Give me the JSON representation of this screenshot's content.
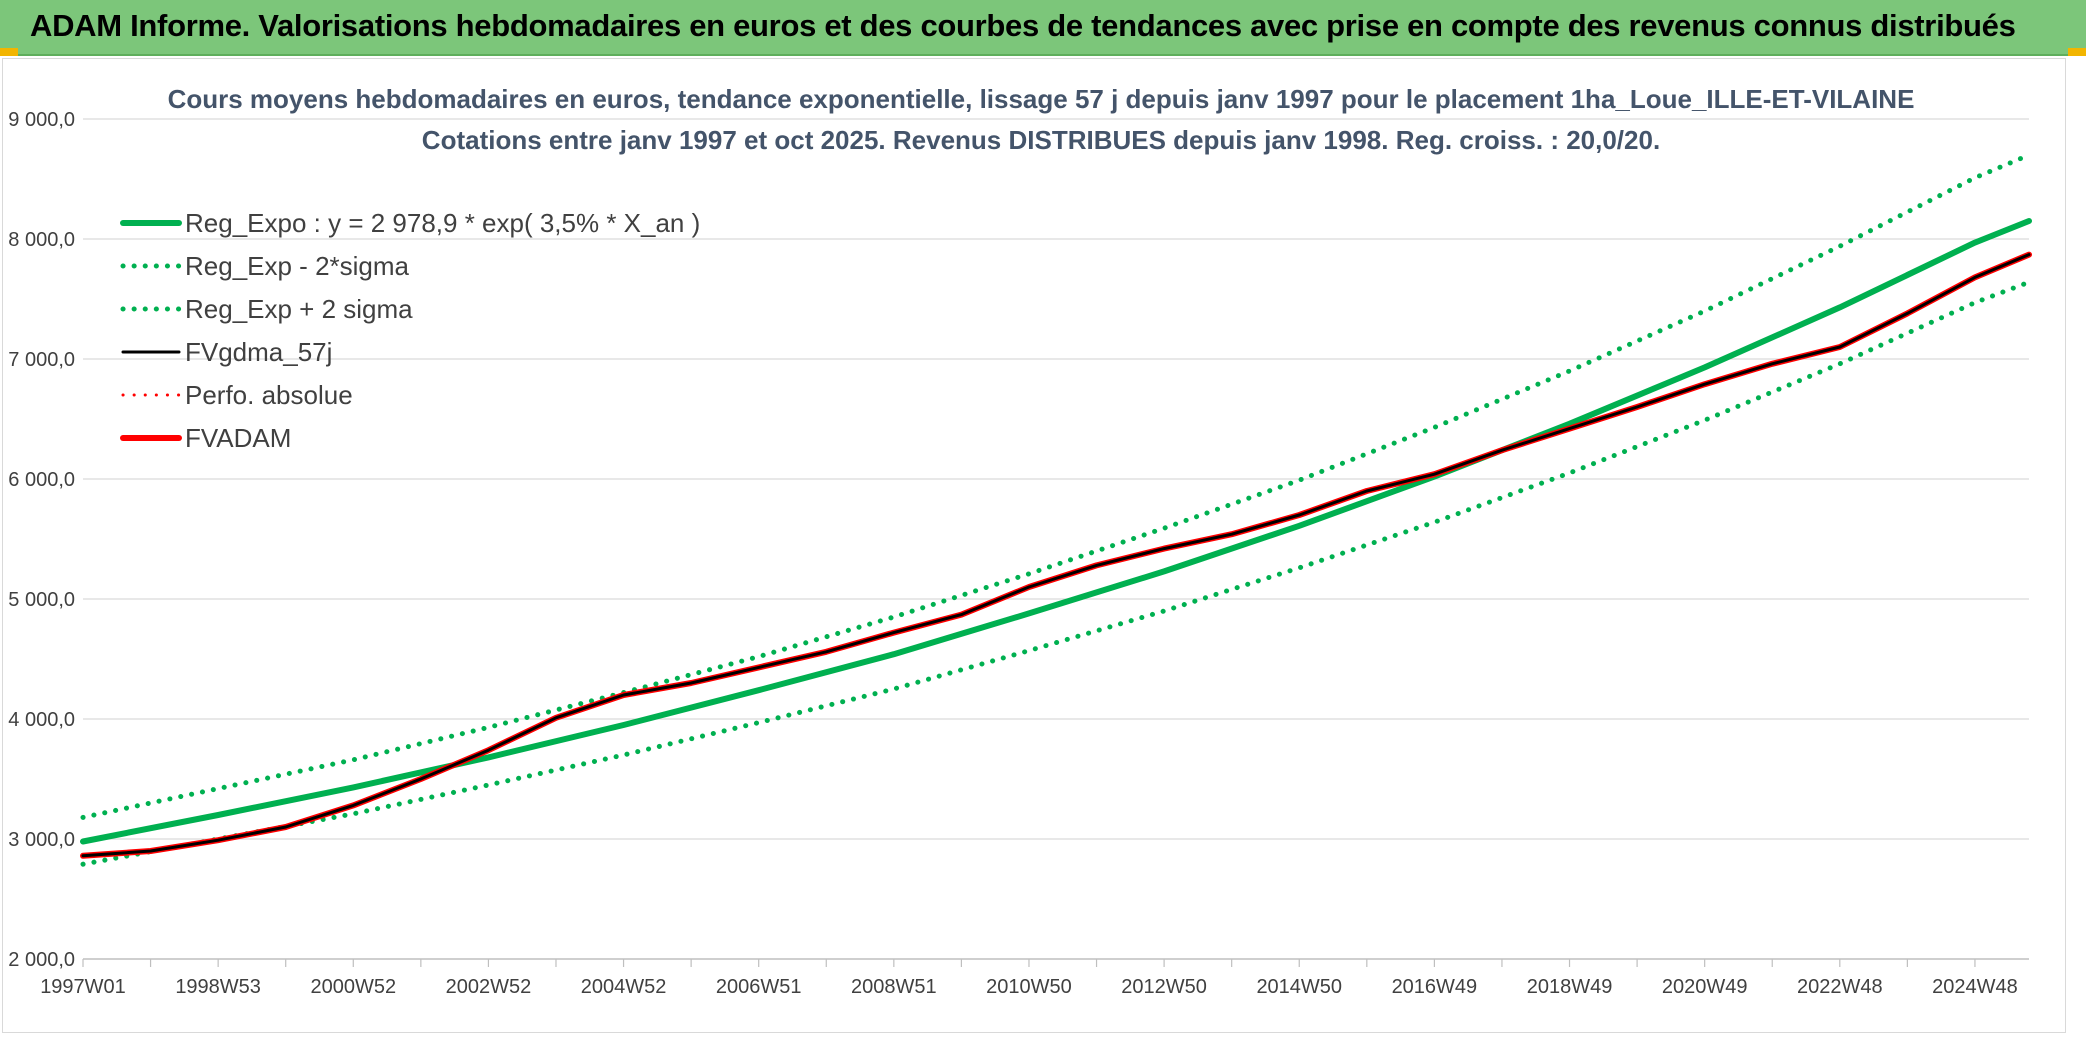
{
  "banner": {
    "title": "ADAM Informe. Valorisations hebdomadaires en euros et des courbes de tendances avec prise en compte des revenus connus distribués",
    "background": "#7cc67a"
  },
  "chart_data": {
    "type": "line",
    "title": "Cours moyens hebdomadaires en euros, tendance exponentielle, lissage 57 j depuis janv 1997 pour le placement 1ha_Loue_ILLE-ET-VILAINE",
    "subtitle": "Cotations entre janv 1997 et oct 2025. Revenus DISTRIBUES depuis janv 1998. Reg. croiss. : 20,0/20.",
    "xlabel": "",
    "ylabel": "",
    "ylim": [
      2000,
      9000
    ],
    "xlim": [
      1997.0,
      2025.8
    ],
    "y_ticks": [
      2000,
      3000,
      4000,
      5000,
      6000,
      7000,
      8000,
      9000
    ],
    "y_tick_labels": [
      "2 000,0",
      "3 000,0",
      "4 000,0",
      "5 000,0",
      "6 000,0",
      "7 000,0",
      "8 000,0",
      "9 000,0"
    ],
    "x_tick_labels": [
      "1997W01",
      "1998W53",
      "2000W52",
      "2002W52",
      "2004W52",
      "2006W51",
      "2008W51",
      "2010W50",
      "2012W50",
      "2014W50",
      "2016W49",
      "2018W49",
      "2020W49",
      "2022W48",
      "2024W48"
    ],
    "x_tick_years": [
      1997.0,
      1999.0,
      2001.0,
      2003.0,
      2005.0,
      2007.0,
      2009.0,
      2011.0,
      2013.0,
      2015.0,
      2017.0,
      2019.0,
      2021.0,
      2023.0,
      2025.0
    ],
    "grid": "horizontal",
    "legend_position": "top-left",
    "series": [
      {
        "name": "Reg_Expo : y = 2 978,9 * exp( 3,5% *  X_an )",
        "color": "#00b050",
        "style": "solid",
        "x": [
          1997.0,
          1999.0,
          2001.0,
          2003.0,
          2005.0,
          2007.0,
          2009.0,
          2011.0,
          2013.0,
          2015.0,
          2017.0,
          2019.0,
          2021.0,
          2023.0,
          2025.0,
          2025.8
        ],
        "y": [
          2979,
          3200,
          3430,
          3680,
          3950,
          4240,
          4540,
          4880,
          5230,
          5610,
          6020,
          6460,
          6930,
          7430,
          7970,
          8150
        ]
      },
      {
        "name": "Reg_Exp - 2*sigma",
        "color": "#00b050",
        "style": "dotted",
        "x": [
          1997.0,
          1999.0,
          2001.0,
          2003.0,
          2005.0,
          2007.0,
          2009.0,
          2011.0,
          2013.0,
          2015.0,
          2017.0,
          2019.0,
          2021.0,
          2023.0,
          2025.0,
          2025.8
        ],
        "y": [
          2790,
          3000,
          3210,
          3450,
          3700,
          3970,
          4250,
          4570,
          4900,
          5260,
          5640,
          6050,
          6490,
          6960,
          7470,
          7640
        ]
      },
      {
        "name": "Reg_Exp + 2 sigma",
        "color": "#00b050",
        "style": "dotted",
        "x": [
          1997.0,
          1999.0,
          2001.0,
          2003.0,
          2005.0,
          2007.0,
          2009.0,
          2011.0,
          2013.0,
          2015.0,
          2017.0,
          2019.0,
          2021.0,
          2023.0,
          2025.0,
          2025.8
        ],
        "y": [
          3180,
          3420,
          3660,
          3930,
          4220,
          4520,
          4850,
          5210,
          5590,
          5990,
          6430,
          6900,
          7400,
          7940,
          8510,
          8700
        ]
      },
      {
        "name": "FVgdma_57j",
        "color": "#000000",
        "style": "solid",
        "x": [
          1997.0,
          1998.0,
          1999.0,
          2000.0,
          2001.0,
          2002.0,
          2003.0,
          2004.0,
          2005.0,
          2006.0,
          2007.0,
          2008.0,
          2009.0,
          2010.0,
          2011.0,
          2012.0,
          2013.0,
          2014.0,
          2015.0,
          2016.0,
          2017.0,
          2018.0,
          2019.0,
          2020.0,
          2021.0,
          2022.0,
          2023.0,
          2024.0,
          2025.0,
          2025.8
        ],
        "y": [
          2860,
          2900,
          2990,
          3100,
          3280,
          3500,
          3740,
          4010,
          4200,
          4300,
          4430,
          4560,
          4720,
          4870,
          5100,
          5280,
          5420,
          5540,
          5700,
          5900,
          6040,
          6240,
          6420,
          6600,
          6790,
          6960,
          7100,
          7380,
          7680,
          7870
        ]
      },
      {
        "name": "Perfo. absolue",
        "color": "#ff0000",
        "style": "dotted",
        "x": [
          1997.0,
          1998.0,
          1999.0,
          2000.0,
          2001.0,
          2002.0,
          2003.0,
          2004.0,
          2005.0,
          2006.0,
          2007.0,
          2008.0,
          2009.0,
          2010.0,
          2011.0,
          2012.0,
          2013.0,
          2014.0,
          2015.0,
          2016.0,
          2017.0,
          2018.0,
          2019.0,
          2020.0,
          2021.0,
          2022.0,
          2023.0,
          2024.0,
          2025.0,
          2025.8
        ],
        "y": [
          2850,
          2895,
          2985,
          3095,
          3275,
          3495,
          3735,
          4005,
          4195,
          4295,
          4425,
          4555,
          4715,
          4865,
          5095,
          5275,
          5415,
          5535,
          5695,
          5895,
          6035,
          6235,
          6415,
          6595,
          6785,
          6955,
          7095,
          7375,
          7675,
          7865
        ]
      },
      {
        "name": "FVADAM",
        "color": "#ff0000",
        "style": "solid",
        "x": [
          1997.0,
          1998.0,
          1999.0,
          2000.0,
          2001.0,
          2002.0,
          2003.0,
          2004.0,
          2005.0,
          2006.0,
          2007.0,
          2008.0,
          2009.0,
          2010.0,
          2011.0,
          2012.0,
          2013.0,
          2014.0,
          2015.0,
          2016.0,
          2017.0,
          2018.0,
          2019.0,
          2020.0,
          2021.0,
          2022.0,
          2023.0,
          2024.0,
          2025.0,
          2025.8
        ],
        "y": [
          2860,
          2900,
          2990,
          3100,
          3280,
          3500,
          3740,
          4010,
          4200,
          4300,
          4430,
          4560,
          4720,
          4870,
          5100,
          5280,
          5420,
          5540,
          5700,
          5900,
          6040,
          6240,
          6420,
          6600,
          6790,
          6960,
          7100,
          7380,
          7680,
          7870
        ]
      }
    ]
  }
}
